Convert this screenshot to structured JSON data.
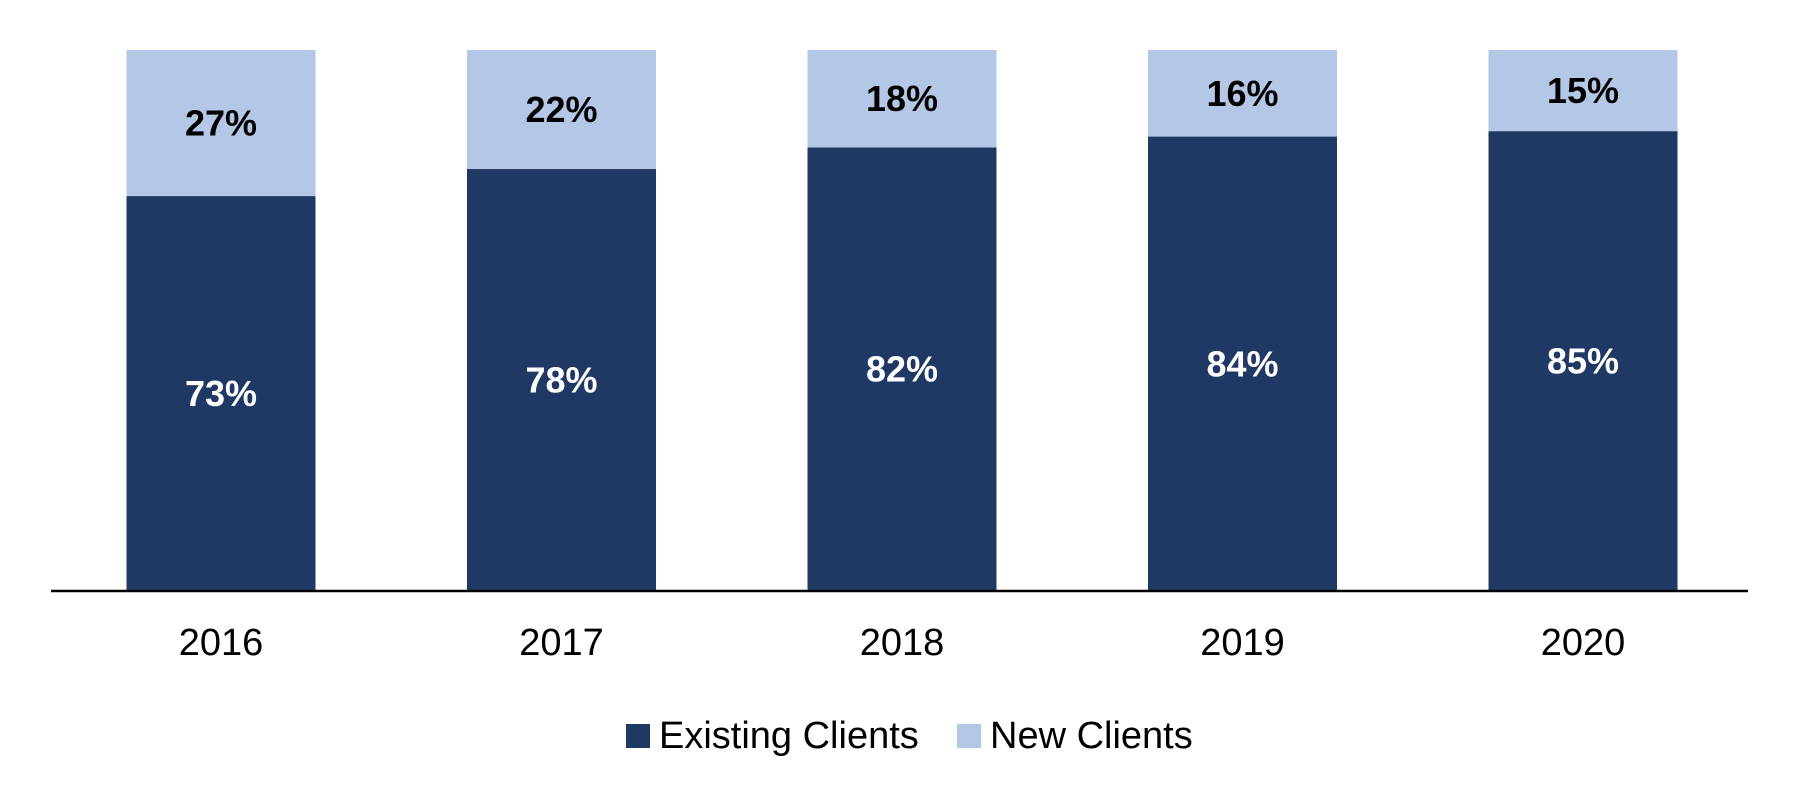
{
  "chart_data": {
    "type": "bar",
    "stacked": true,
    "categories": [
      "2016",
      "2017",
      "2018",
      "2019",
      "2020"
    ],
    "series": [
      {
        "name": "Existing Clients",
        "values": [
          73,
          78,
          82,
          84,
          85
        ],
        "labels": [
          "73%",
          "78%",
          "82%",
          "84%",
          "85%"
        ],
        "color": "#203864",
        "label_color": "#ffffff"
      },
      {
        "name": "New Clients",
        "values": [
          27,
          22,
          18,
          16,
          15
        ],
        "labels": [
          "27%",
          "22%",
          "18%",
          "16%",
          "15%"
        ],
        "color": "#b4c7e7",
        "label_color": "#000000"
      }
    ],
    "ylim": [
      0,
      100
    ],
    "grid": false,
    "legend_position": "bottom",
    "axis_color": "#000000"
  }
}
